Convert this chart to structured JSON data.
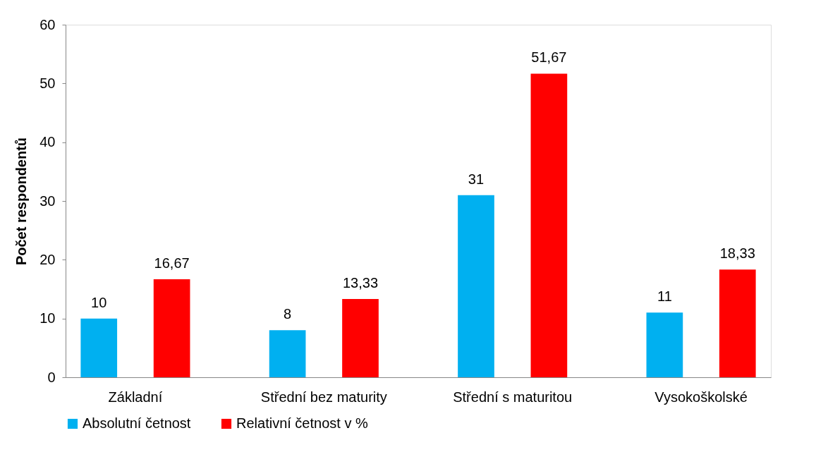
{
  "chart_data": {
    "type": "bar",
    "ylabel": "Počet respondentů",
    "categories": [
      "Základní",
      "Střední bez maturity",
      "Střední s maturitou",
      "Vysokoškolské"
    ],
    "series": [
      {
        "name": "Absolutní četnost",
        "color": "#00b0f0",
        "values": [
          10,
          8,
          31,
          11
        ],
        "value_labels": [
          "10",
          "8",
          "31",
          "11"
        ]
      },
      {
        "name": "Relativní četnost v %",
        "color": "#ff0000",
        "values": [
          16.67,
          13.33,
          51.67,
          18.33
        ],
        "value_labels": [
          "16,67",
          "13,33",
          "51,67",
          "18,33"
        ]
      }
    ],
    "ylim": [
      0,
      60
    ],
    "yticks": [
      0,
      10,
      20,
      30,
      40,
      50,
      60
    ],
    "grid": false,
    "legend": "bottom"
  }
}
